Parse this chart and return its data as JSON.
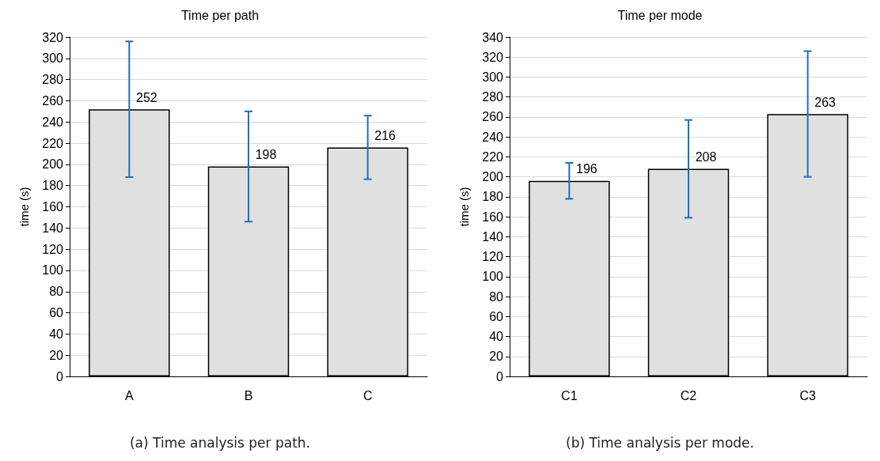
{
  "chart_data": [
    {
      "type": "bar",
      "title": "Time per path",
      "ylabel": "time (s)",
      "categories": [
        "A",
        "B",
        "C"
      ],
      "values": [
        252,
        198,
        216
      ],
      "errors": [
        64,
        52,
        30
      ],
      "color": "#e0e0e0",
      "ylim": [
        0,
        320
      ],
      "yticks": [
        0,
        20,
        40,
        60,
        80,
        100,
        120,
        140,
        160,
        180,
        200,
        220,
        240,
        260,
        280,
        300,
        320
      ],
      "grid": "y",
      "data_labels": true,
      "annotations": [
        "(a) Time analysis per path."
      ]
    },
    {
      "type": "bar",
      "title": "Time per mode",
      "ylabel": "time (s)",
      "categories": [
        "C1",
        "C2",
        "C3"
      ],
      "values": [
        196,
        208,
        263
      ],
      "errors": [
        18,
        49,
        63
      ],
      "color": "#e0e0e0",
      "ylim": [
        0,
        340
      ],
      "yticks": [
        0,
        20,
        40,
        60,
        80,
        100,
        120,
        140,
        160,
        180,
        200,
        220,
        240,
        260,
        280,
        300,
        320,
        340
      ],
      "grid": "y",
      "data_labels": true,
      "annotations": [
        "(b) Time analysis per mode."
      ]
    }
  ]
}
